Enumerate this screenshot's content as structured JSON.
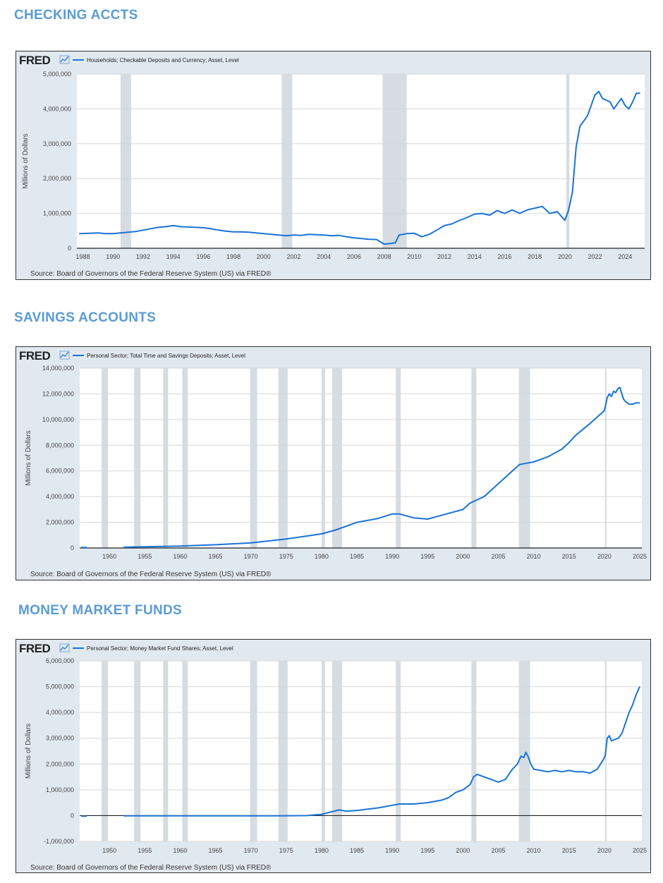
{
  "headings": [
    "CHECKING ACCTS",
    "SAVINGS ACCOUNTS",
    "MONEY MARKET FUNDS"
  ],
  "colors": {
    "heading": "#5b9bd5",
    "line": "#1a73d6",
    "plot_bg": "#ffffff",
    "frame_bg": "#e1e9f0",
    "recession": "#d5dce2",
    "grid": "#d8d8d8"
  },
  "chart_data": [
    {
      "type": "line",
      "title": "CHECKING ACCTS",
      "logo": "FRED",
      "legend": "Households; Checkable Deposits and Currency; Asset, Level",
      "ylabel": "Millions of Dollars",
      "xlabel": "",
      "source": "Source: Board of Governors of the Federal Reserve System (US) via FRED®",
      "xlim": [
        1987.6,
        2025.3
      ],
      "ylim": [
        0,
        5000000
      ],
      "yticks": [
        0,
        1000000,
        2000000,
        3000000,
        4000000,
        5000000
      ],
      "ytick_labels": [
        "0",
        "1,000,000",
        "2,000,000",
        "3,000,000",
        "4,000,000",
        "5,000,000"
      ],
      "xticks": [
        1988,
        1990,
        1992,
        1994,
        1996,
        1998,
        2000,
        2002,
        2004,
        2006,
        2008,
        2010,
        2012,
        2014,
        2016,
        2018,
        2020,
        2022,
        2024
      ],
      "xtick_labels": [
        "1988",
        "1990",
        "1992",
        "1994",
        "1996",
        "1998",
        "2000",
        "2002",
        "2004",
        "2006",
        "2008",
        "2010",
        "2012",
        "2014",
        "2016",
        "2018",
        "2020",
        "2022",
        "2024"
      ],
      "recessions": [
        [
          1990.5,
          1991.2
        ],
        [
          2001.2,
          2001.9
        ],
        [
          2007.9,
          2009.5
        ],
        [
          2020.1,
          2020.3
        ]
      ],
      "series": [
        {
          "name": "Households; Checkable Deposits and Currency; Asset, Level",
          "x": [
            1987.75,
            1988.5,
            1989,
            1989.5,
            1990,
            1990.5,
            1991,
            1991.5,
            1992,
            1992.5,
            1993,
            1993.5,
            1994,
            1994.5,
            1995,
            1995.5,
            1996,
            1996.5,
            1997,
            1997.5,
            1998,
            1998.5,
            1999,
            1999.5,
            2000,
            2000.5,
            2001,
            2001.5,
            2002,
            2002.5,
            2003,
            2003.5,
            2004,
            2004.5,
            2005,
            2005.5,
            2006,
            2006.5,
            2007,
            2007.5,
            2008,
            2008.5,
            2008.75,
            2009,
            2009.5,
            2010,
            2010.5,
            2011,
            2011.5,
            2012,
            2012.5,
            2013,
            2013.5,
            2014,
            2014.5,
            2015,
            2015.5,
            2016,
            2016.5,
            2017,
            2017.5,
            2018,
            2018.5,
            2019,
            2019.5,
            2020,
            2020.25,
            2020.5,
            2020.75,
            2021,
            2021.5,
            2022,
            2022.25,
            2022.5,
            2023,
            2023.25,
            2023.75,
            2024,
            2024.25,
            2024.5,
            2024.75,
            2025
          ],
          "values": [
            420000,
            430000,
            440000,
            420000,
            420000,
            440000,
            460000,
            480000,
            520000,
            560000,
            600000,
            620000,
            650000,
            620000,
            610000,
            600000,
            590000,
            560000,
            520000,
            490000,
            470000,
            470000,
            460000,
            440000,
            420000,
            400000,
            380000,
            360000,
            380000,
            370000,
            400000,
            390000,
            380000,
            360000,
            370000,
            330000,
            300000,
            280000,
            260000,
            250000,
            120000,
            140000,
            160000,
            380000,
            420000,
            430000,
            330000,
            400000,
            520000,
            650000,
            700000,
            800000,
            880000,
            980000,
            1000000,
            950000,
            1080000,
            1000000,
            1100000,
            1000000,
            1100000,
            1150000,
            1200000,
            1000000,
            1050000,
            800000,
            1100000,
            1600000,
            2900000,
            3500000,
            3800000,
            4400000,
            4500000,
            4300000,
            4200000,
            4000000,
            4300000,
            4100000,
            4000000,
            4200000,
            4450000,
            4450000
          ]
        }
      ]
    },
    {
      "type": "line",
      "title": "SAVINGS ACCOUNTS",
      "logo": "FRED",
      "legend": "Personal Sector; Total Time and Savings Deposits; Asset, Level",
      "ylabel": "Millions of Dollars",
      "xlabel": "",
      "source": "Source: Board of Governors of the Federal Reserve System (US) via FRED®",
      "xlim": [
        1945.8,
        2025.3
      ],
      "ylim": [
        0,
        14000000
      ],
      "yticks": [
        0,
        2000000,
        4000000,
        6000000,
        8000000,
        10000000,
        12000000,
        14000000
      ],
      "ytick_labels": [
        "0",
        "2,000,000",
        "4,000,000",
        "6,000,000",
        "8,000,000",
        "10,000,000",
        "12,000,000",
        "14,000,000"
      ],
      "xticks": [
        1950,
        1955,
        1960,
        1965,
        1970,
        1975,
        1980,
        1985,
        1990,
        1995,
        2000,
        2005,
        2010,
        2015,
        2020,
        2025
      ],
      "xtick_labels": [
        "1950",
        "1955",
        "1960",
        "1965",
        "1970",
        "1975",
        "1980",
        "1985",
        "1990",
        "1995",
        "2000",
        "2005",
        "2010",
        "2015",
        "2020",
        "2025"
      ],
      "recessions": [
        [
          1948.9,
          1949.8
        ],
        [
          1953.5,
          1954.4
        ],
        [
          1957.6,
          1958.3
        ],
        [
          1960.3,
          1961.1
        ],
        [
          1969.9,
          1970.9
        ],
        [
          1973.9,
          1975.2
        ],
        [
          1980.0,
          1980.5
        ],
        [
          1981.5,
          1982.9
        ],
        [
          1990.5,
          1991.2
        ],
        [
          2001.2,
          2001.9
        ],
        [
          2007.9,
          2009.5
        ],
        [
          2020.1,
          2020.3
        ]
      ],
      "series": [
        {
          "name": "Personal Sector; Total Time and Savings Deposits; Asset, Level",
          "x": [
            1946,
            1946.8,
            null,
            1952,
            1955,
            1960,
            1965,
            1970,
            1975,
            1980,
            1982,
            1985,
            1988,
            1990,
            1991,
            1993,
            1995,
            1998,
            2000,
            2001,
            2003,
            2005,
            2007,
            2008,
            2009,
            2010,
            2011,
            2012,
            2014,
            2015,
            2016,
            2018,
            2019,
            2020,
            2020.4,
            2020.7,
            2021,
            2021.3,
            2021.6,
            2021.9,
            2022.2,
            2022.7,
            2023,
            2023.5,
            2024,
            2024.5,
            2025
          ],
          "values": [
            50000,
            45000,
            null,
            60000,
            100000,
            150000,
            250000,
            400000,
            700000,
            1100000,
            1400000,
            2000000,
            2300000,
            2650000,
            2650000,
            2350000,
            2250000,
            2700000,
            3000000,
            3500000,
            4000000,
            5000000,
            6000000,
            6500000,
            6600000,
            6700000,
            6900000,
            7100000,
            7700000,
            8200000,
            8800000,
            9700000,
            10200000,
            10700000,
            11700000,
            12000000,
            11800000,
            12200000,
            12100000,
            12400000,
            12500000,
            11600000,
            11400000,
            11200000,
            11200000,
            11300000,
            11300000
          ]
        }
      ]
    },
    {
      "type": "line",
      "title": "MONEY MARKET FUNDS",
      "logo": "FRED",
      "legend": "Personal Sector; Money Market Fund Shares; Asset, Level",
      "ylabel": "Millions of Dollars",
      "xlabel": "",
      "source": "Source: Board of Governors of the Federal Reserve System (US) via FRED®",
      "xlim": [
        1945.8,
        2025.3
      ],
      "ylim": [
        -1000000,
        6000000
      ],
      "yticks": [
        -1000000,
        0,
        1000000,
        2000000,
        3000000,
        4000000,
        5000000,
        6000000
      ],
      "ytick_labels": [
        "-1,000,000",
        "0",
        "1,000,000",
        "2,000,000",
        "3,000,000",
        "4,000,000",
        "5,000,000",
        "6,000,000"
      ],
      "xticks": [
        1950,
        1955,
        1960,
        1965,
        1970,
        1975,
        1980,
        1985,
        1990,
        1995,
        2000,
        2005,
        2010,
        2015,
        2020,
        2025
      ],
      "xtick_labels": [
        "1950",
        "1955",
        "1960",
        "1965",
        "1970",
        "1975",
        "1980",
        "1985",
        "1990",
        "1995",
        "2000",
        "2005",
        "2010",
        "2015",
        "2020",
        "2025"
      ],
      "recessions": [
        [
          1948.9,
          1949.8
        ],
        [
          1953.5,
          1954.4
        ],
        [
          1957.6,
          1958.3
        ],
        [
          1960.3,
          1961.1
        ],
        [
          1969.9,
          1970.9
        ],
        [
          1973.9,
          1975.2
        ],
        [
          1980.0,
          1980.5
        ],
        [
          1981.5,
          1982.9
        ],
        [
          1990.5,
          1991.2
        ],
        [
          2001.2,
          2001.9
        ],
        [
          2007.9,
          2009.5
        ],
        [
          2020.1,
          2020.3
        ]
      ],
      "series": [
        {
          "name": "Personal Sector; Money Market Fund Shares; Asset, Level",
          "x": [
            1946,
            1946.8,
            null,
            1952,
            1974,
            1978,
            1980,
            1981.5,
            1982.5,
            1983.5,
            1985,
            1988,
            1990,
            1991,
            1993,
            1995,
            1997,
            1998,
            1999,
            2000,
            2001,
            2001.5,
            2002,
            2003,
            2004,
            2005,
            2006,
            2007,
            2007.7,
            2008.2,
            2008.6,
            2008.9,
            2009.2,
            2009.6,
            2010,
            2011,
            2012,
            2013,
            2014,
            2015,
            2016,
            2017,
            2018,
            2019,
            2019.7,
            2020.1,
            2020.4,
            2020.7,
            2021,
            2021.5,
            2022,
            2022.5,
            2023,
            2023.5,
            2024,
            2024.5,
            2025
          ],
          "values": [
            -20000,
            -20000,
            null,
            -10000,
            -10000,
            0,
            50000,
            150000,
            220000,
            170000,
            200000,
            300000,
            400000,
            450000,
            450000,
            500000,
            600000,
            700000,
            900000,
            1000000,
            1200000,
            1500000,
            1600000,
            1500000,
            1400000,
            1300000,
            1400000,
            1800000,
            2000000,
            2300000,
            2250000,
            2450000,
            2300000,
            2000000,
            1800000,
            1750000,
            1700000,
            1750000,
            1700000,
            1750000,
            1700000,
            1700000,
            1650000,
            1800000,
            2100000,
            2300000,
            3000000,
            3100000,
            2900000,
            2950000,
            3000000,
            3200000,
            3600000,
            4000000,
            4300000,
            4700000,
            5000000
          ]
        }
      ]
    }
  ]
}
